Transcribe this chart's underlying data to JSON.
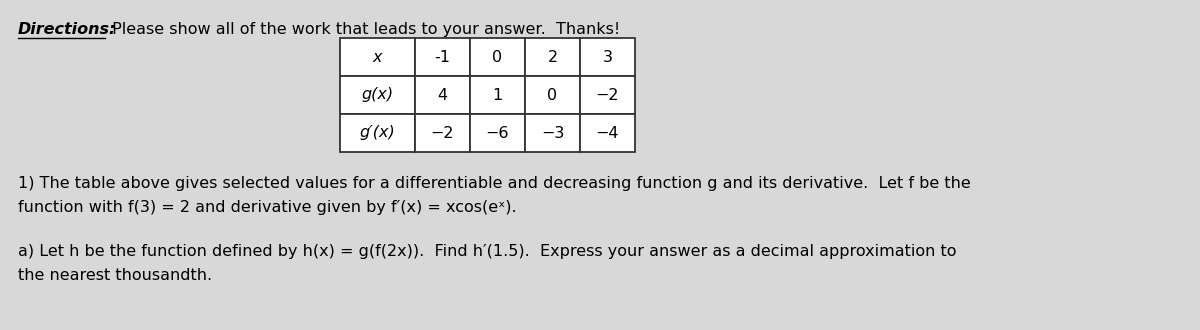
{
  "directions_label": "Directions:",
  "directions_rest": " Please show all of the work that leads to your answer.  Thanks!",
  "table_headers": [
    "x",
    "-1",
    "0",
    "2",
    "3"
  ],
  "table_row1": [
    "g(x)",
    "4",
    "1",
    "0",
    "−2"
  ],
  "table_row2": [
    "g′(x)",
    "−2",
    "−6",
    "−3",
    "−4"
  ],
  "line1": "1) The table above gives selected values for a differentiable and decreasing function g and its derivative.  Let f be the",
  "line2": "function with f(3) = 2 and derivative given by f′(x) = xcos(eˣ).",
  "line3": "a) Let h be the function defined by h(x) = g(f(2x)).  Find h′(1.5).  Express your answer as a decimal approximation to",
  "line4": "the nearest thousandth.",
  "bg_color": "#d8d8d8",
  "text_color": "#000000",
  "fontsize": 11.5
}
